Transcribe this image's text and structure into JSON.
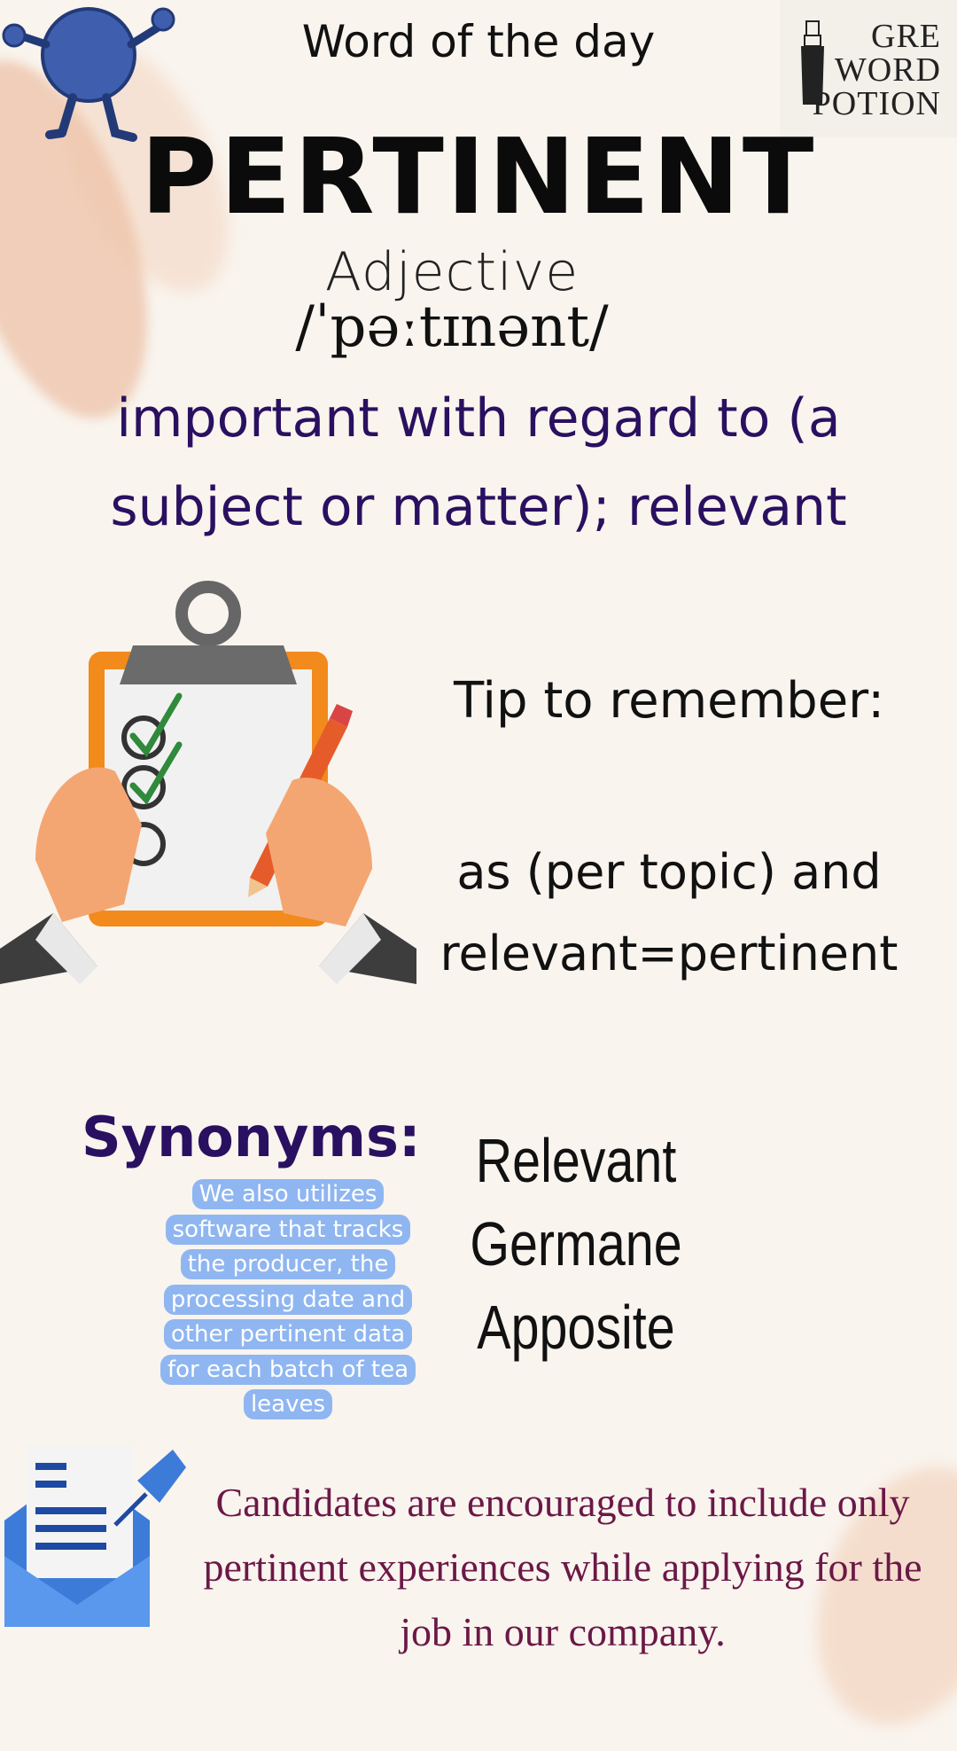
{
  "header": {
    "title": "Word of the day"
  },
  "logo": {
    "lines": [
      "GRE",
      "WORD",
      "POTION"
    ]
  },
  "word": {
    "text": "PERTINENT",
    "part_of_speech": "Adjective",
    "pronunciation": "/ˈpəːtɪnənt/",
    "definition": "important with regard to (a subject or matter); relevant"
  },
  "tip": {
    "title": "Tip to remember:",
    "line1": "as (per topic) and",
    "line2": "relevant=pertinent"
  },
  "synonyms": {
    "title": "Synonyms:",
    "items": [
      "Relevant",
      "Germane",
      "Apposite"
    ]
  },
  "example": {
    "text": "We also utilizes software that tracks the producer, the processing date and other pertinent data for each batch of tea leaves"
  },
  "sentence": {
    "text": "Candidates are encouraged to include only pertinent experiences while applying for the job in our company."
  },
  "colors": {
    "background": "#f9f4ee",
    "definition": "#2a1060",
    "sentence": "#6b1847",
    "bubble": "#8fb6f1",
    "mascot": "#3f5fae",
    "clipboard": "#f28a1c"
  },
  "icons": [
    "mascot-icon",
    "logo-bottle-icon",
    "clipboard-icon",
    "pencil-icon",
    "envelope-icon",
    "pin-icon"
  ]
}
